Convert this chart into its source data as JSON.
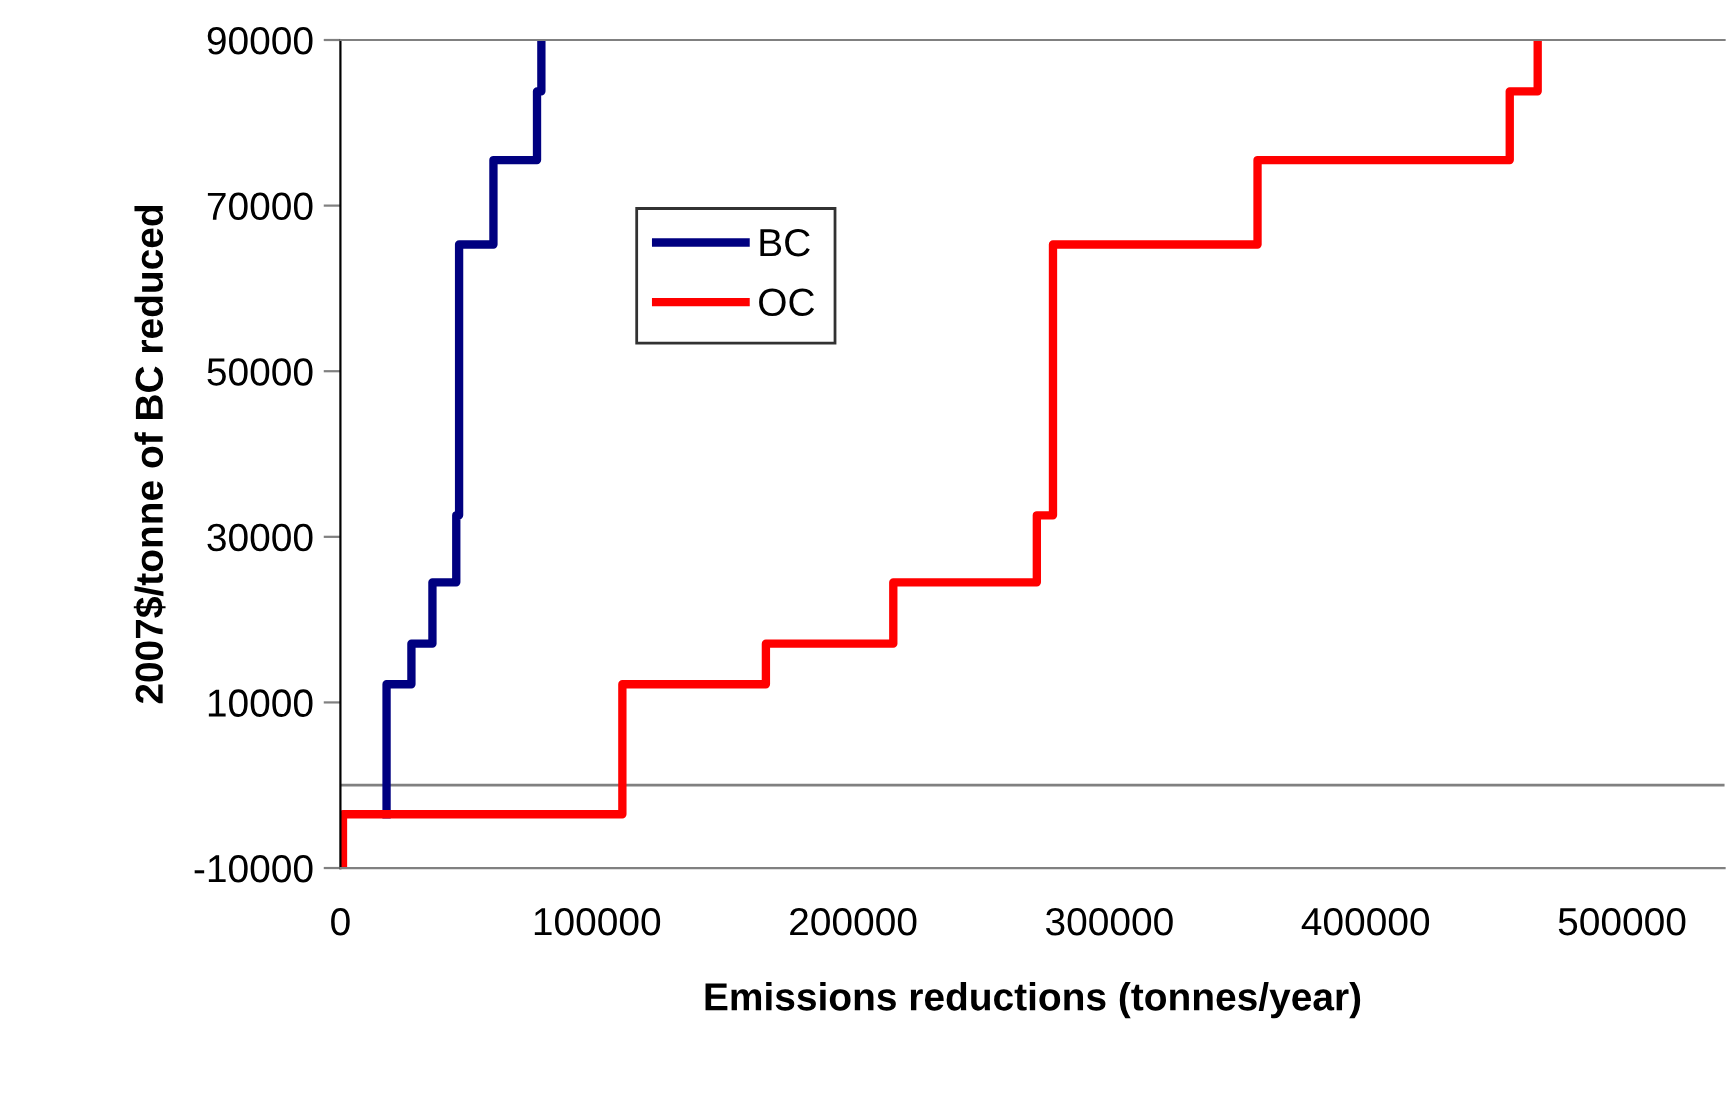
{
  "chart_data": {
    "type": "step",
    "xlabel": "Emissions reductions (tonnes/year)",
    "ylabel": "2007$/tonne of BC reduced",
    "series": [
      {
        "name": "BC",
        "color": "#000080",
        "x": [
          18000,
          18000,
          27700,
          35900,
          45200,
          46300,
          59700,
          76700,
          78400
        ],
        "values": [
          -3500,
          12200,
          17100,
          24500,
          32600,
          65300,
          75500,
          83800,
          90000
        ]
      },
      {
        "name": "OC",
        "color": "#ff0000",
        "x": [
          1000,
          1000,
          110000,
          166000,
          215700,
          271700,
          278000,
          357800,
          456200,
          467100
        ],
        "values": [
          -10000,
          -3500,
          12200,
          17100,
          24500,
          32600,
          65300,
          75500,
          83800,
          90000
        ]
      }
    ],
    "xlim": [
      0,
      540000
    ],
    "xticks": [
      0,
      100000,
      200000,
      300000,
      400000,
      500000
    ],
    "ylim": [
      -10000,
      90000
    ],
    "yticks": [
      -10000,
      10000,
      30000,
      50000,
      70000,
      90000
    ],
    "ref_lines": [
      {
        "axis": "y",
        "value": 0,
        "color": "#808080"
      }
    ],
    "legend": "top left",
    "grid": false,
    "line_style": "solid",
    "marker": "none"
  }
}
